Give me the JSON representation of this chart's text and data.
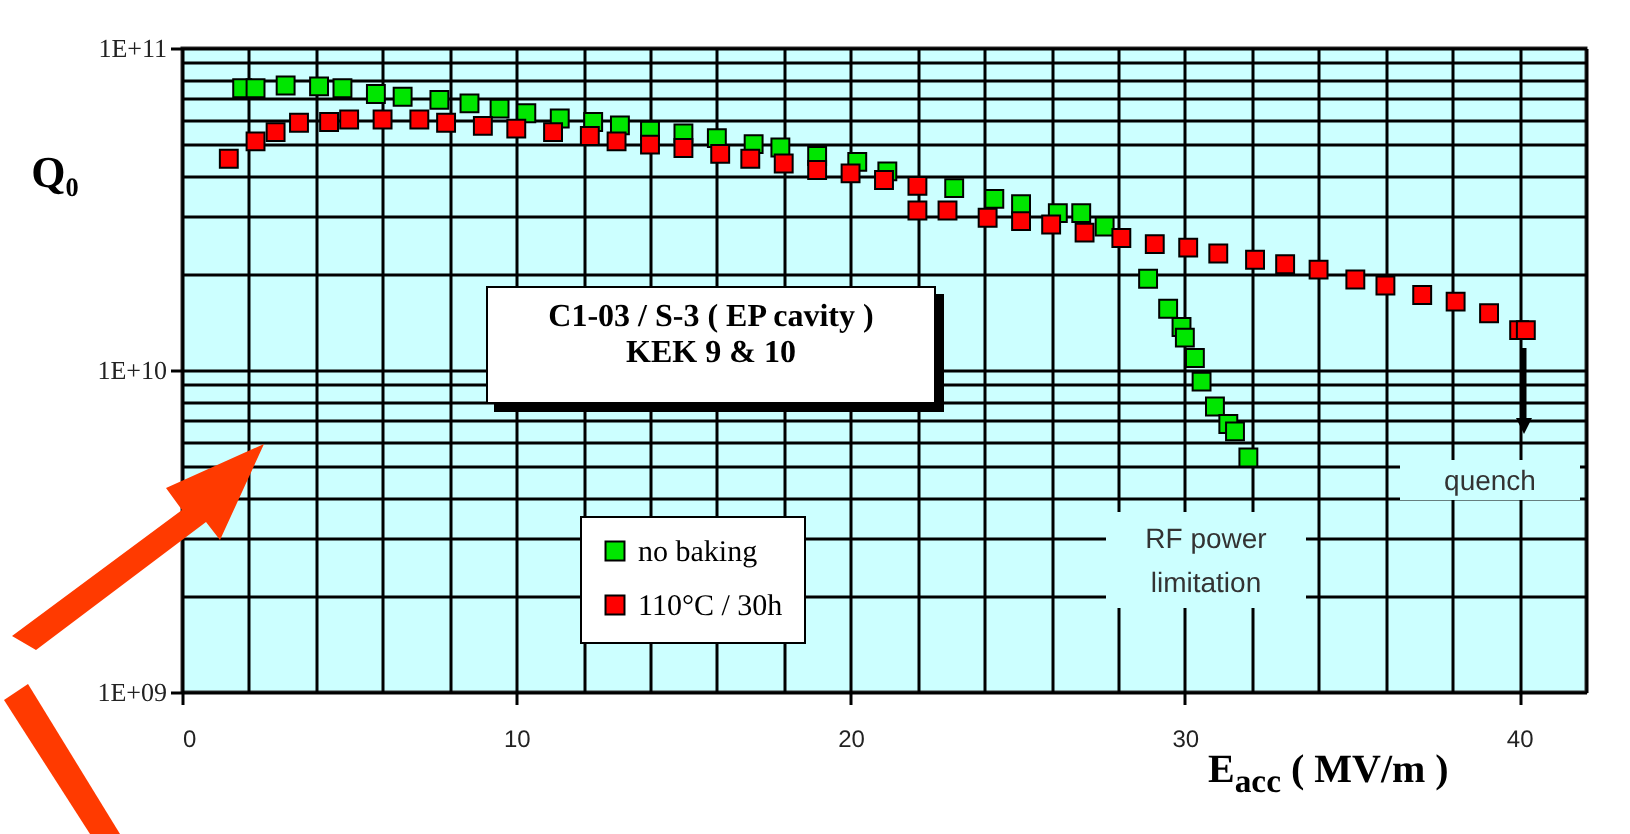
{
  "chart_data": {
    "type": "scatter",
    "xlabel": "E$_{acc}$ ( MV/m )",
    "ylabel": "Q₀",
    "xlim": [
      0,
      42
    ],
    "xticks": [
      0,
      10,
      20,
      30,
      40
    ],
    "ylim": [
      1000000000.0,
      100000000000.0
    ],
    "yticks": [
      {
        "value": 1000000000.0,
        "label": "1E+09"
      },
      {
        "value": 10000000000.0,
        "label": "1E+10"
      },
      {
        "value": 100000000000.0,
        "label": "1E+11"
      }
    ],
    "log": true,
    "grid": true,
    "legend": "bottom left",
    "marker": "square",
    "series": [
      {
        "name": "no baking",
        "color": "#00e600",
        "x": [
          1.8,
          2.2,
          3.1,
          4.1,
          4.8,
          5.8,
          6.6,
          7.7,
          8.6,
          9.5,
          10.3,
          11.3,
          12.3,
          13.1,
          14.0,
          15.0,
          16.0,
          17.1,
          17.9,
          19.0,
          20.2,
          21.1,
          23.1,
          24.3,
          25.1,
          26.2,
          26.9,
          27.6,
          28.9,
          29.5,
          29.9,
          30.0,
          30.3,
          30.5,
          30.9,
          31.3,
          31.5,
          31.9
        ],
        "values": [
          75000000000.0,
          75000000000.0,
          76500000000.0,
          76000000000.0,
          75000000000.0,
          72000000000.0,
          70600000000.0,
          69000000000.0,
          67300000000.0,
          64800000000.0,
          62700000000.0,
          60400000000.0,
          58900000000.0,
          57500000000.0,
          55400000000.0,
          54300000000.0,
          52500000000.0,
          50300000000.0,
          49100000000.0,
          46200000000.0,
          44300000000.0,
          41400000000.0,
          36700000000.0,
          34000000000.0,
          32700000000.0,
          30700000000.0,
          30700000000.0,
          27900000000.0,
          19200000000.0,
          15500000000.0,
          13600000000.0,
          12600000000.0,
          10900000000.0,
          9200000000.0,
          7700000000.0,
          6800000000.0,
          6450000000.0,
          5350000000.0
        ]
      },
      {
        "name": "110°C / 30h",
        "color": "#ff0000",
        "x": [
          1.4,
          2.2,
          2.8,
          3.5,
          4.4,
          5.0,
          6.0,
          7.1,
          7.9,
          9.0,
          10.0,
          11.1,
          12.2,
          13.0,
          14.0,
          15.0,
          16.1,
          17.0,
          18.0,
          19.0,
          20.0,
          21.0,
          22.0,
          22.0,
          22.9,
          24.1,
          25.1,
          26.0,
          27.0,
          28.1,
          29.1,
          30.1,
          31.0,
          32.1,
          33.0,
          34.0,
          35.1,
          36.0,
          37.1,
          38.1,
          39.1,
          40.0,
          40.2
        ],
        "values": [
          45300000000.0,
          51300000000.0,
          54800000000.0,
          58600000000.0,
          58900000000.0,
          60000000000.0,
          60000000000.0,
          60000000000.0,
          58600000000.0,
          57300000000.0,
          56200000000.0,
          54800000000.0,
          53300000000.0,
          51300000000.0,
          50100000000.0,
          48900000000.0,
          46900000000.0,
          45300000000.0,
          43800000000.0,
          41800000000.0,
          40800000000.0,
          38900000000.0,
          37300000000.0,
          31300000000.0,
          31300000000.0,
          29700000000.0,
          29000000000.0,
          28300000000.0,
          26700000000.0,
          25700000000.0,
          24600000000.0,
          24000000000.0,
          23000000000.0,
          22000000000.0,
          21300000000.0,
          20500000000.0,
          19100000000.0,
          18300000000.0,
          17100000000.0,
          16300000000.0,
          15000000000.0,
          13300000000.0,
          13300000000.0
        ]
      }
    ],
    "annotations": [
      "C1-03 / S-3 ( EP cavity )\nKEK 9 & 10",
      "RF power\nlimitation",
      "quench"
    ]
  }
}
